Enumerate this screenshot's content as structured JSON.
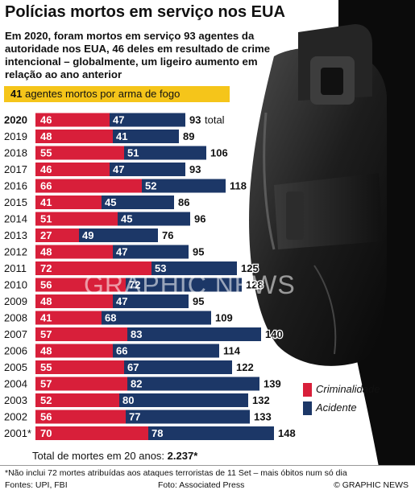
{
  "title": "Polícias mortos em serviço nos EUA",
  "subtitle": "Em 2020, foram mortos em serviço 93 agentes da autoridade nos EUA, 46 deles em resultado de crime intencional – globalmente, um ligeiro aumento em relação ao ano anterior",
  "highlight": {
    "value": "41",
    "text": "agentes mortos por arma de fogo"
  },
  "colors": {
    "criminal": "#d81f3a",
    "accident": "#1c3767",
    "highlight": "#f5c51a"
  },
  "chart_data": {
    "type": "bar",
    "stacked": true,
    "orientation": "horizontal",
    "categories": [
      "2020",
      "2019",
      "2018",
      "2017",
      "2016",
      "2015",
      "2014",
      "2013",
      "2012",
      "2011",
      "2010",
      "2009",
      "2008",
      "2007",
      "2006",
      "2005",
      "2004",
      "2003",
      "2002",
      "2001*"
    ],
    "series": [
      {
        "name": "Criminalidade",
        "color": "#d81f3a",
        "values": [
          46,
          48,
          55,
          46,
          66,
          41,
          51,
          27,
          48,
          72,
          56,
          48,
          41,
          57,
          48,
          55,
          57,
          52,
          56,
          70
        ]
      },
      {
        "name": "Acidente",
        "color": "#1c3767",
        "values": [
          47,
          41,
          51,
          47,
          52,
          45,
          45,
          49,
          47,
          53,
          72,
          47,
          68,
          83,
          66,
          67,
          82,
          80,
          77,
          78
        ]
      }
    ],
    "totals": [
      93,
      89,
      106,
      93,
      118,
      86,
      96,
      76,
      95,
      125,
      128,
      95,
      109,
      140,
      114,
      122,
      139,
      132,
      133,
      148
    ],
    "total_suffix": "total",
    "legend_position": "right"
  },
  "total_line": {
    "text": "Total de mortes em 20 anos:",
    "value": "2.237*"
  },
  "footnote": "*Não inclui 72 mortes atribuídas aos ataques terroristas de 11 Set – mais óbitos num só dia",
  "sources": "Fontes: UPI, FBI",
  "photo_credit": "Foto: Associated Press",
  "copyright": "© GRAPHIC NEWS",
  "watermark": "GRAPHIC NEWS"
}
